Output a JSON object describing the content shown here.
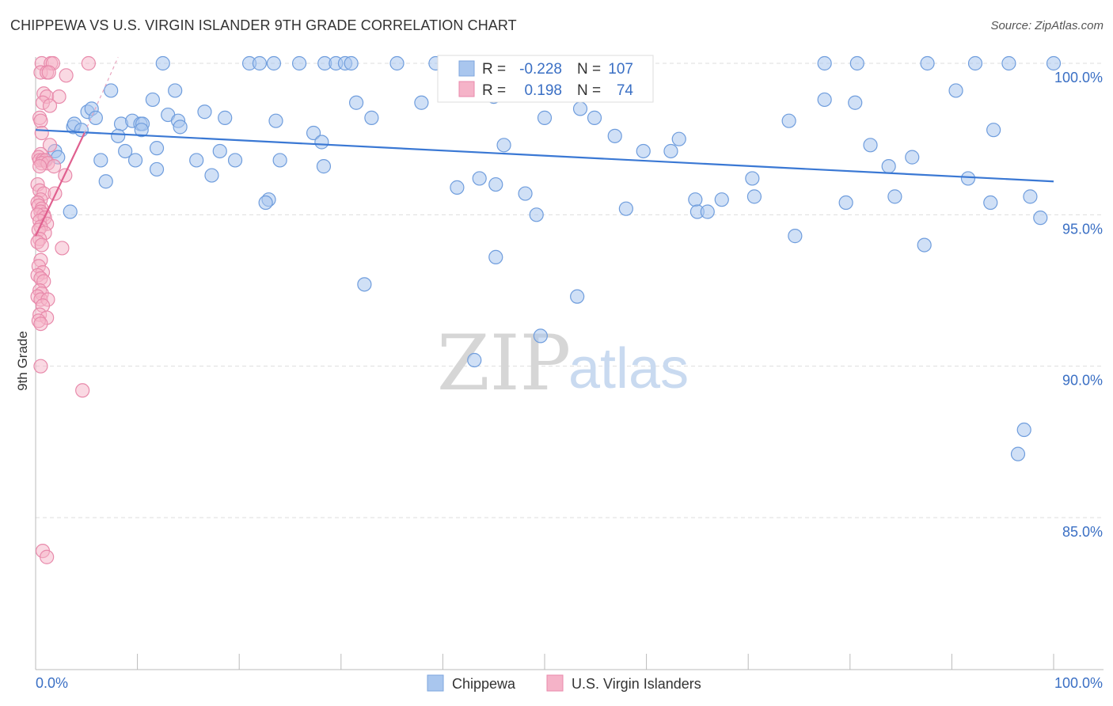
{
  "title": "CHIPPEWA VS U.S. VIRGIN ISLANDER 9TH GRADE CORRELATION CHART",
  "source": "Source: ZipAtlas.com",
  "watermark": {
    "zip": "ZIP",
    "atlas": "atlas"
  },
  "colors": {
    "blue": "#3a78d4",
    "blue_fill": "#a9c6ee",
    "pink": "#e0608f",
    "pink_fill": "#f5b3c8",
    "grid": "#dddddd",
    "tick_text": "#3a6fc4"
  },
  "stats": [
    {
      "r_label": "R =",
      "r": "-0.228",
      "n_label": "N =",
      "n": "107"
    },
    {
      "r_label": "R =",
      "r": "0.198",
      "n_label": "N =",
      "n": "74"
    }
  ],
  "chart_data": {
    "type": "scatter",
    "title": "CHIPPEWA VS U.S. VIRGIN ISLANDER 9TH GRADE CORRELATION CHART",
    "xlabel": "",
    "ylabel": "9th Grade",
    "xlim": [
      0,
      100
    ],
    "ylim": [
      80.3,
      100.8
    ],
    "x_tick_labels": [
      "0.0%",
      "100.0%"
    ],
    "y_ticks": [
      85,
      90,
      95,
      100
    ],
    "y_tick_labels": [
      "85.0%",
      "90.0%",
      "95.0%",
      "100.0%"
    ],
    "legend": [
      "Chippewa",
      "U.S. Virgin Islanders"
    ],
    "series": [
      {
        "name": "Chippewa",
        "trend": {
          "x": [
            0,
            100
          ],
          "y": [
            97.8,
            96.1
          ]
        },
        "points": [
          [
            12.5,
            100
          ],
          [
            21,
            100
          ],
          [
            22,
            100
          ],
          [
            23.4,
            100
          ],
          [
            25.9,
            100
          ],
          [
            28.4,
            100
          ],
          [
            29.5,
            100
          ],
          [
            30.4,
            100
          ],
          [
            31,
            100
          ],
          [
            35.5,
            100
          ],
          [
            39.3,
            100
          ],
          [
            42.9,
            100
          ],
          [
            77.5,
            100
          ],
          [
            80.7,
            100
          ],
          [
            87.6,
            100
          ],
          [
            92.3,
            100
          ],
          [
            95.6,
            100
          ],
          [
            100,
            100
          ],
          [
            7.4,
            99.1
          ],
          [
            13.7,
            99.1
          ],
          [
            11.5,
            98.8
          ],
          [
            31.5,
            98.7
          ],
          [
            37.9,
            98.7
          ],
          [
            45,
            98.9
          ],
          [
            77.5,
            98.8
          ],
          [
            80.5,
            98.7
          ],
          [
            90.4,
            99.1
          ],
          [
            5.1,
            98.4
          ],
          [
            5.5,
            98.5
          ],
          [
            5.9,
            98.2
          ],
          [
            13,
            98.3
          ],
          [
            14,
            98.1
          ],
          [
            16.6,
            98.4
          ],
          [
            18.6,
            98.2
          ],
          [
            23.6,
            98.1
          ],
          [
            33,
            98.2
          ],
          [
            50,
            98.2
          ],
          [
            53.5,
            98.5
          ],
          [
            54.9,
            98.2
          ],
          [
            74,
            98.1
          ],
          [
            3.7,
            97.9
          ],
          [
            3.8,
            98.0
          ],
          [
            4.5,
            97.8
          ],
          [
            8.4,
            98.0
          ],
          [
            9.5,
            98.1
          ],
          [
            10.3,
            98.0
          ],
          [
            10.5,
            98.0
          ],
          [
            14.2,
            97.9
          ],
          [
            8.1,
            97.6
          ],
          [
            10.4,
            97.8
          ],
          [
            27.3,
            97.7
          ],
          [
            56.9,
            97.6
          ],
          [
            63.2,
            97.5
          ],
          [
            94.1,
            97.8
          ],
          [
            1.9,
            97.1
          ],
          [
            2.2,
            96.9
          ],
          [
            8.8,
            97.1
          ],
          [
            11.9,
            97.2
          ],
          [
            18.1,
            97.1
          ],
          [
            28.1,
            97.4
          ],
          [
            46,
            97.3
          ],
          [
            59.7,
            97.1
          ],
          [
            62.4,
            97.1
          ],
          [
            82,
            97.3
          ],
          [
            86.1,
            96.9
          ],
          [
            0.9,
            96.8
          ],
          [
            6.4,
            96.8
          ],
          [
            9.8,
            96.8
          ],
          [
            11.9,
            96.5
          ],
          [
            15.8,
            96.8
          ],
          [
            17.3,
            96.3
          ],
          [
            19.6,
            96.8
          ],
          [
            24,
            96.8
          ],
          [
            28.3,
            96.6
          ],
          [
            43.6,
            96.2
          ],
          [
            70.4,
            96.2
          ],
          [
            83.8,
            96.6
          ],
          [
            91.6,
            96.2
          ],
          [
            6.9,
            96.1
          ],
          [
            41.4,
            95.9
          ],
          [
            45.2,
            96.0
          ],
          [
            48.1,
            95.7
          ],
          [
            70.6,
            95.6
          ],
          [
            84.4,
            95.6
          ],
          [
            97.7,
            95.6
          ],
          [
            22.9,
            95.5
          ],
          [
            22.6,
            95.4
          ],
          [
            64.8,
            95.5
          ],
          [
            67.4,
            95.5
          ],
          [
            79.6,
            95.4
          ],
          [
            93.8,
            95.4
          ],
          [
            3.4,
            95.1
          ],
          [
            49.2,
            95.0
          ],
          [
            58,
            95.2
          ],
          [
            65,
            95.1
          ],
          [
            66,
            95.1
          ],
          [
            98.7,
            94.9
          ],
          [
            74.6,
            94.3
          ],
          [
            87.3,
            94.0
          ],
          [
            45.2,
            93.6
          ],
          [
            32.3,
            92.7
          ],
          [
            53.2,
            92.3
          ],
          [
            49.6,
            91.0
          ],
          [
            43.1,
            90.2
          ],
          [
            97.1,
            87.9
          ],
          [
            96.5,
            87.1
          ]
        ]
      },
      {
        "name": "U.S. Virgin Islanders",
        "trend": {
          "x": [
            0,
            4.8
          ],
          "y": [
            94.3,
            97.7
          ]
        },
        "trend_extension": {
          "x": [
            4.8,
            8.1
          ],
          "y": [
            97.7,
            100.2
          ]
        },
        "points": [
          [
            0.6,
            100
          ],
          [
            1.5,
            100
          ],
          [
            1.7,
            100
          ],
          [
            5.2,
            100
          ],
          [
            0.5,
            99.7
          ],
          [
            1.1,
            99.7
          ],
          [
            1.3,
            99.7
          ],
          [
            3,
            99.6
          ],
          [
            0.8,
            99.0
          ],
          [
            1.1,
            98.9
          ],
          [
            2.3,
            98.9
          ],
          [
            0.7,
            98.7
          ],
          [
            1.4,
            98.6
          ],
          [
            0.4,
            98.2
          ],
          [
            0.5,
            98.1
          ],
          [
            0.6,
            97.7
          ],
          [
            1.4,
            97.3
          ],
          [
            0.5,
            97.0
          ],
          [
            0.3,
            96.9
          ],
          [
            0.4,
            96.8
          ],
          [
            0.7,
            96.8
          ],
          [
            1.0,
            96.8
          ],
          [
            0.6,
            96.7
          ],
          [
            1.2,
            96.7
          ],
          [
            0.4,
            96.6
          ],
          [
            1.8,
            96.6
          ],
          [
            2.9,
            96.3
          ],
          [
            0.2,
            96.0
          ],
          [
            0.4,
            95.8
          ],
          [
            0.8,
            95.7
          ],
          [
            1.9,
            95.7
          ],
          [
            0.5,
            95.5
          ],
          [
            0.2,
            95.4
          ],
          [
            0.3,
            95.3
          ],
          [
            0.6,
            95.2
          ],
          [
            0.5,
            95.1
          ],
          [
            0.8,
            95.0
          ],
          [
            0.2,
            95.0
          ],
          [
            0.9,
            94.9
          ],
          [
            0.4,
            94.8
          ],
          [
            1.1,
            94.7
          ],
          [
            0.5,
            94.6
          ],
          [
            0.3,
            94.5
          ],
          [
            0.9,
            94.4
          ],
          [
            0.4,
            94.2
          ],
          [
            0.2,
            94.1
          ],
          [
            0.6,
            94.0
          ],
          [
            2.6,
            93.9
          ],
          [
            0.5,
            93.5
          ],
          [
            0.3,
            93.3
          ],
          [
            0.7,
            93.1
          ],
          [
            0.2,
            93.0
          ],
          [
            0.5,
            92.9
          ],
          [
            0.8,
            92.8
          ],
          [
            0.4,
            92.5
          ],
          [
            0.6,
            92.4
          ],
          [
            0.2,
            92.3
          ],
          [
            0.5,
            92.2
          ],
          [
            1.2,
            92.2
          ],
          [
            0.7,
            92.0
          ],
          [
            0.4,
            91.7
          ],
          [
            1.1,
            91.6
          ],
          [
            0.3,
            91.5
          ],
          [
            0.5,
            91.4
          ],
          [
            0.5,
            90.0
          ],
          [
            4.6,
            89.2
          ],
          [
            0.7,
            83.9
          ],
          [
            1.1,
            83.7
          ]
        ]
      }
    ]
  }
}
